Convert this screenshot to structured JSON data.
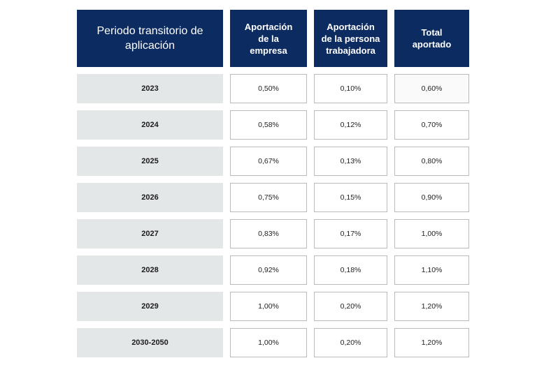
{
  "table": {
    "headers": [
      "Periodo transitorio de\naplicación",
      "Aportación\nde la\nempresa",
      "Aportación\nde la persona\ntrabajadora",
      "Total\naportado"
    ],
    "rows": [
      {
        "period": "2023",
        "empresa": "0,50%",
        "trabajadora": "0,10%",
        "total": "0,60%"
      },
      {
        "period": "2024",
        "empresa": "0,58%",
        "trabajadora": "0,12%",
        "total": "0,70%"
      },
      {
        "period": "2025",
        "empresa": "0,67%",
        "trabajadora": "0,13%",
        "total": "0,80%"
      },
      {
        "period": "2026",
        "empresa": "0,75%",
        "trabajadora": "0,15%",
        "total": "0,90%"
      },
      {
        "period": "2027",
        "empresa": "0,83%",
        "trabajadora": "0,17%",
        "total": "1,00%"
      },
      {
        "period": "2028",
        "empresa": "0,92%",
        "trabajadora": "0,18%",
        "total": "1,10%"
      },
      {
        "period": "2029",
        "empresa": "1,00%",
        "trabajadora": "0,20%",
        "total": "1,20%"
      },
      {
        "period": "2030-2050",
        "empresa": "1,00%",
        "trabajadora": "0,20%",
        "total": "1,20%"
      }
    ]
  },
  "colors": {
    "header_bg": "#0c2b61",
    "period_bg": "#e3e7e8",
    "cell_border": "#b9bcbe"
  }
}
